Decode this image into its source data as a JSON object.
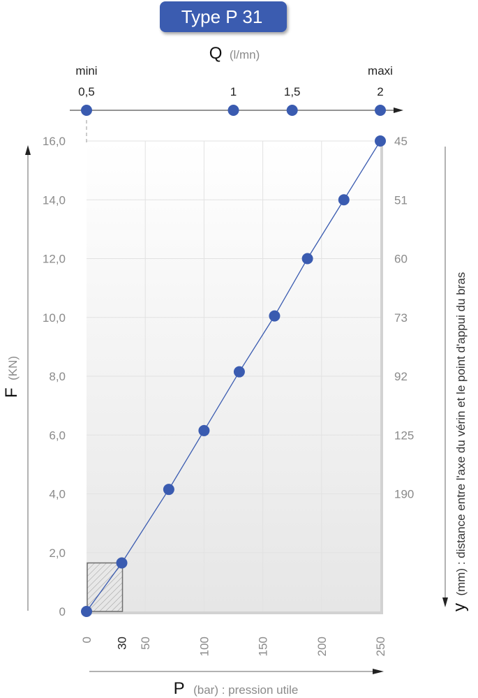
{
  "badge": {
    "label": "Type P 31"
  },
  "chart_data": {
    "type": "line",
    "title": "Type P 31",
    "x_axis": {
      "label": "P",
      "unit": "(bar) : pression utile",
      "range": [
        0,
        250
      ],
      "ticks": [
        0,
        30,
        50,
        100,
        150,
        200,
        250
      ],
      "tick_labels": [
        "0",
        "30",
        "50",
        "100",
        "150",
        "200",
        "250"
      ],
      "highlight_tick": "30"
    },
    "y_axis": {
      "label": "F",
      "unit": "(KN)",
      "range": [
        0,
        16
      ],
      "ticks": [
        0,
        2,
        4,
        6,
        8,
        10,
        12,
        14,
        16
      ],
      "tick_labels": [
        "0",
        "2,0",
        "4,0",
        "6,0",
        "8,0",
        "10,0",
        "12,0",
        "14,0",
        "16,0"
      ]
    },
    "top_axis": {
      "label": "Q",
      "unit": "(l/mn)",
      "tick_labels": [
        "0,5",
        "1",
        "1,5",
        "2"
      ],
      "tick_values": [
        0.5,
        1,
        1.5,
        2
      ],
      "tick_at_p": [
        0,
        125,
        175,
        250
      ],
      "end_labels": [
        "mini",
        "maxi"
      ]
    },
    "right_axis": {
      "label": "y",
      "unit": "(mm) : distance entre l'axe du vérin et le point d'appui du bras",
      "tick_labels": [
        "45",
        "51",
        "60",
        "73",
        "92",
        "125",
        "190"
      ],
      "tick_at_f": [
        16,
        14,
        12,
        10,
        8,
        6,
        4
      ]
    },
    "series": [
      {
        "x": [
          0,
          30,
          70,
          100,
          130,
          160,
          188,
          219,
          250
        ],
        "y": [
          0,
          1.65,
          4.15,
          6.15,
          8.15,
          10.05,
          12.0,
          14.0,
          16.0
        ]
      }
    ],
    "hatched_zone": {
      "x": [
        0,
        30
      ],
      "y": [
        0,
        1.65
      ]
    },
    "grid": true,
    "colors": {
      "badge": "#3a5bb0",
      "series": "#3a5bb0",
      "marker": "#3a5bb0",
      "grid": "#e2e2e2"
    }
  }
}
